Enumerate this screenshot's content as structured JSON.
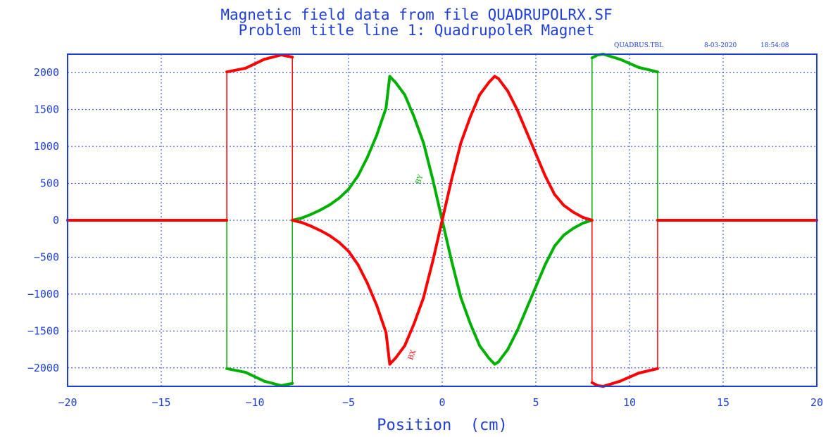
{
  "chart_data": {
    "type": "line",
    "title": "Magnetic field data from file QUADRUPOLRX.SF",
    "subtitle": "Problem title line 1: QuadrupoleR Magnet",
    "table_file": "QUADRUS.TBL",
    "date": "8-03-2020",
    "time": "18:54:08",
    "xlabel": "Position  (cm)",
    "ylabel": "",
    "xlim": [
      -20,
      20
    ],
    "ylim": [
      -2250,
      2250
    ],
    "xticks": [
      -20,
      -15,
      -10,
      -5,
      0,
      5,
      10,
      15,
      20
    ],
    "yticks": [
      -2000,
      -1500,
      -1000,
      -500,
      0,
      500,
      1000,
      1500,
      2000
    ],
    "grid": true,
    "series": [
      {
        "name": "BX",
        "color": "#ff0000",
        "points": [
          [
            -20,
            0
          ],
          [
            -11.5,
            0
          ],
          [
            -11.5,
            2010
          ],
          [
            -10.5,
            2060
          ],
          [
            -9.5,
            2180
          ],
          [
            -8.6,
            2240
          ],
          [
            -8.2,
            2220
          ],
          [
            -8.0,
            2210
          ],
          [
            -8.0,
            0
          ],
          [
            -7.5,
            -30
          ],
          [
            -7.0,
            -80
          ],
          [
            -6.5,
            -140
          ],
          [
            -6.0,
            -210
          ],
          [
            -5.5,
            -300
          ],
          [
            -5.0,
            -420
          ],
          [
            -4.5,
            -600
          ],
          [
            -4.0,
            -850
          ],
          [
            -3.5,
            -1150
          ],
          [
            -3.0,
            -1520
          ],
          [
            -2.8,
            -1950
          ],
          [
            -2.5,
            -1870
          ],
          [
            -2.0,
            -1700
          ],
          [
            -1.5,
            -1400
          ],
          [
            -1.0,
            -1050
          ],
          [
            -0.5,
            -550
          ],
          [
            0,
            0
          ],
          [
            0.5,
            550
          ],
          [
            1.0,
            1050
          ],
          [
            1.5,
            1400
          ],
          [
            2.0,
            1700
          ],
          [
            2.5,
            1870
          ],
          [
            2.8,
            1950
          ],
          [
            3.0,
            1920
          ],
          [
            3.5,
            1750
          ],
          [
            4.0,
            1500
          ],
          [
            4.5,
            1200
          ],
          [
            5.0,
            900
          ],
          [
            5.5,
            600
          ],
          [
            6.0,
            350
          ],
          [
            6.5,
            200
          ],
          [
            7.0,
            110
          ],
          [
            7.5,
            40
          ],
          [
            8.0,
            0
          ],
          [
            8.0,
            -2200
          ],
          [
            8.3,
            -2240
          ],
          [
            8.6,
            -2250
          ],
          [
            9.5,
            -2180
          ],
          [
            10.5,
            -2070
          ],
          [
            11.5,
            -2010
          ],
          [
            11.5,
            0
          ],
          [
            20,
            0
          ]
        ]
      },
      {
        "name": "BY",
        "color": "#00b000",
        "points": [
          [
            -20,
            0
          ],
          [
            -11.5,
            0
          ],
          [
            -11.5,
            -2010
          ],
          [
            -10.5,
            -2060
          ],
          [
            -9.5,
            -2180
          ],
          [
            -8.6,
            -2240
          ],
          [
            -8.2,
            -2220
          ],
          [
            -8.0,
            -2210
          ],
          [
            -8.0,
            0
          ],
          [
            -7.5,
            30
          ],
          [
            -7.0,
            80
          ],
          [
            -6.5,
            140
          ],
          [
            -6.0,
            210
          ],
          [
            -5.5,
            300
          ],
          [
            -5.0,
            420
          ],
          [
            -4.5,
            600
          ],
          [
            -4.0,
            850
          ],
          [
            -3.5,
            1150
          ],
          [
            -3.0,
            1520
          ],
          [
            -2.8,
            1950
          ],
          [
            -2.5,
            1870
          ],
          [
            -2.0,
            1700
          ],
          [
            -1.5,
            1400
          ],
          [
            -1.0,
            1050
          ],
          [
            -0.5,
            550
          ],
          [
            0,
            0
          ],
          [
            0.5,
            -550
          ],
          [
            1.0,
            -1050
          ],
          [
            1.5,
            -1400
          ],
          [
            2.0,
            -1700
          ],
          [
            2.5,
            -1870
          ],
          [
            2.8,
            -1950
          ],
          [
            3.0,
            -1920
          ],
          [
            3.5,
            -1750
          ],
          [
            4.0,
            -1500
          ],
          [
            4.5,
            -1200
          ],
          [
            5.0,
            -900
          ],
          [
            5.5,
            -600
          ],
          [
            6.0,
            -350
          ],
          [
            6.5,
            -200
          ],
          [
            7.0,
            -110
          ],
          [
            7.5,
            -40
          ],
          [
            8.0,
            0
          ],
          [
            8.0,
            2200
          ],
          [
            8.3,
            2240
          ],
          [
            8.6,
            2250
          ],
          [
            9.5,
            2180
          ],
          [
            10.5,
            2070
          ],
          [
            11.5,
            2010
          ],
          [
            11.5,
            0
          ],
          [
            20,
            0
          ]
        ]
      }
    ]
  }
}
